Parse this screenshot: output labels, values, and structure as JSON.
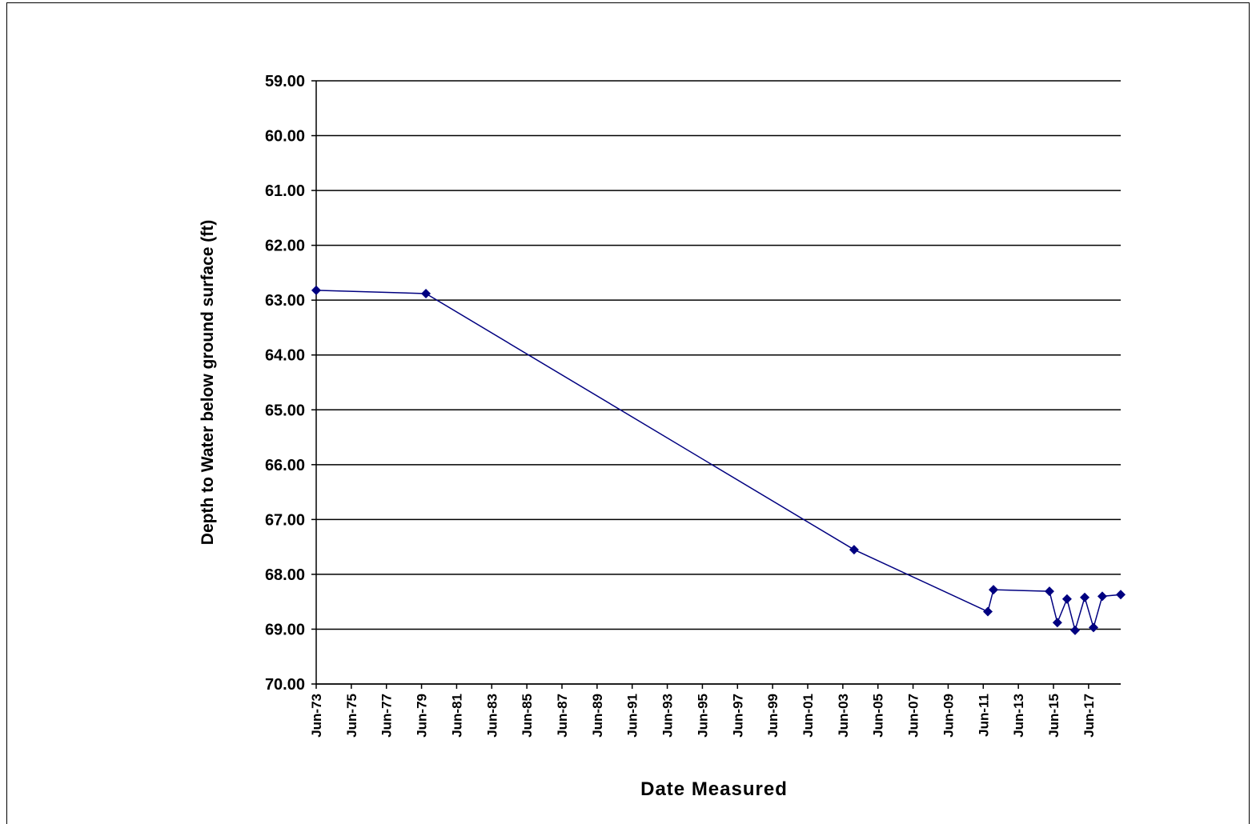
{
  "chart_data": {
    "type": "line",
    "x_label": "Date Measured",
    "y_label": "Depth to Water below ground surface (ft)",
    "x": [
      1973.42,
      1979.67,
      2004.06,
      2011.68,
      2012.0,
      2015.19,
      2015.64,
      2016.19,
      2016.65,
      2017.2,
      2017.7,
      2018.2,
      2019.25
    ],
    "series": [
      {
        "name": "Depth to Water",
        "color": "#000080",
        "values": [
          62.82,
          62.88,
          67.55,
          68.68,
          68.28,
          68.31,
          68.88,
          68.45,
          69.02,
          68.42,
          68.97,
          68.4,
          68.37
        ]
      }
    ],
    "xlim": [
      1973.42,
      2019.25
    ],
    "xticks": [
      {
        "value": 1973.42,
        "label": "Jun-73"
      },
      {
        "value": 1975.42,
        "label": "Jun-75"
      },
      {
        "value": 1977.42,
        "label": "Jun-77"
      },
      {
        "value": 1979.42,
        "label": "Jun-79"
      },
      {
        "value": 1981.42,
        "label": "Jun-81"
      },
      {
        "value": 1983.42,
        "label": "Jun-83"
      },
      {
        "value": 1985.42,
        "label": "Jun-85"
      },
      {
        "value": 1987.42,
        "label": "Jun-87"
      },
      {
        "value": 1989.42,
        "label": "Jun-89"
      },
      {
        "value": 1991.42,
        "label": "Jun-91"
      },
      {
        "value": 1993.42,
        "label": "Jun-93"
      },
      {
        "value": 1995.42,
        "label": "Jun-95"
      },
      {
        "value": 1997.42,
        "label": "Jun-97"
      },
      {
        "value": 1999.42,
        "label": "Jun-99"
      },
      {
        "value": 2001.42,
        "label": "Jun-01"
      },
      {
        "value": 2003.42,
        "label": "Jun-03"
      },
      {
        "value": 2005.42,
        "label": "Jun-05"
      },
      {
        "value": 2007.42,
        "label": "Jun-07"
      },
      {
        "value": 2009.42,
        "label": "Jun-09"
      },
      {
        "value": 2011.42,
        "label": "Jun-11"
      },
      {
        "value": 2013.42,
        "label": "Jun-13"
      },
      {
        "value": 2015.42,
        "label": "Jun-15"
      },
      {
        "value": 2017.42,
        "label": "Jun-17"
      }
    ],
    "ylim": [
      59,
      70
    ],
    "y_inverted": true,
    "yticks": [
      {
        "value": 59,
        "label": "59.00"
      },
      {
        "value": 60,
        "label": "60.00"
      },
      {
        "value": 61,
        "label": "61.00"
      },
      {
        "value": 62,
        "label": "62.00"
      },
      {
        "value": 63,
        "label": "63.00"
      },
      {
        "value": 64,
        "label": "64.00"
      },
      {
        "value": 65,
        "label": "65.00"
      },
      {
        "value": 66,
        "label": "66.00"
      },
      {
        "value": 67,
        "label": "67.00"
      },
      {
        "value": 68,
        "label": "68.00"
      },
      {
        "value": 69,
        "label": "69.00"
      },
      {
        "value": 70,
        "label": "70.00"
      }
    ],
    "grid": true,
    "marker": "diamond"
  }
}
